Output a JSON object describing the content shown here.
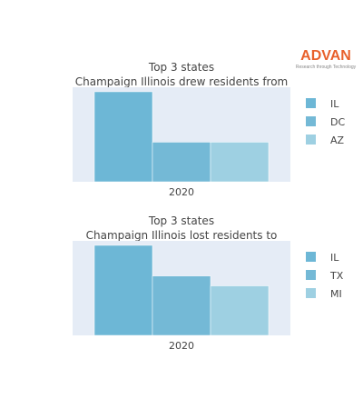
{
  "brand": {
    "name": "ADVAN",
    "tagline": "Research through Technology",
    "color": "#e8612c"
  },
  "chart_data": [
    {
      "type": "bar",
      "title": [
        "Top 3 states",
        "Champaign Illinois drew residents from"
      ],
      "categories": [
        "2020"
      ],
      "series": [
        {
          "name": "IL",
          "values": [
            100
          ],
          "color": "#6db7d6"
        },
        {
          "name": "DC",
          "values": [
            44
          ],
          "color": "#74b9d6"
        },
        {
          "name": "AZ",
          "values": [
            44
          ],
          "color": "#9ed0e2"
        }
      ],
      "ylim": [
        0,
        105
      ],
      "legend_position": "right",
      "plot_bgcolor": "#e5ecf6"
    },
    {
      "type": "bar",
      "title": [
        "Top 3 states",
        "Champaign Illinois lost residents to"
      ],
      "categories": [
        "2020"
      ],
      "series": [
        {
          "name": "IL",
          "values": [
            100
          ],
          "color": "#6db7d6"
        },
        {
          "name": "TX",
          "values": [
            66
          ],
          "color": "#74b9d6"
        },
        {
          "name": "MI",
          "values": [
            55
          ],
          "color": "#9ed0e2"
        }
      ],
      "ylim": [
        0,
        105
      ],
      "legend_position": "right",
      "plot_bgcolor": "#e5ecf6"
    }
  ]
}
